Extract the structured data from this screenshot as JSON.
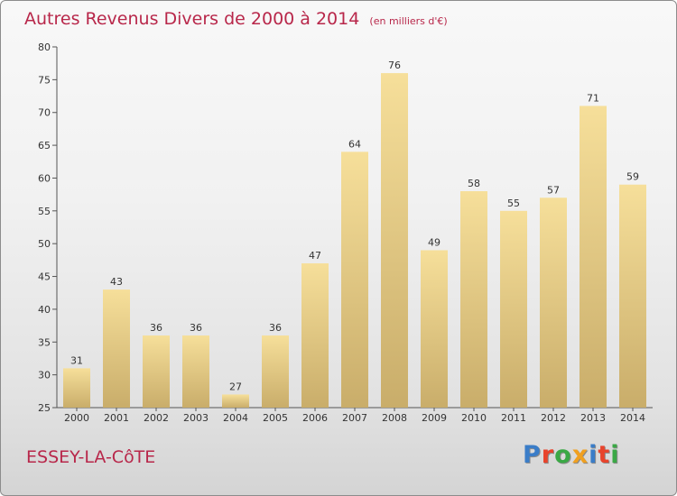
{
  "title": "Autres Revenus Divers de 2000 à 2014",
  "subtitle": "(en milliers d'€)",
  "commune": "ESSEY-LA-CôTE",
  "logo": {
    "text": "Proxiti",
    "colors": [
      "#3a7dc8",
      "#e8442c",
      "#3aa845",
      "#f0a020",
      "#3a7dc8",
      "#e8442c",
      "#3aa845"
    ]
  },
  "colors": {
    "title": "#b8274a",
    "bar_light": "#f6df9a",
    "bar_dark": "#c9ad6a"
  },
  "chart_data": {
    "type": "bar",
    "categories": [
      "2000",
      "2001",
      "2002",
      "2003",
      "2004",
      "2005",
      "2006",
      "2007",
      "2008",
      "2009",
      "2010",
      "2011",
      "2012",
      "2013",
      "2014"
    ],
    "values": [
      31,
      43,
      36,
      36,
      27,
      36,
      47,
      64,
      76,
      49,
      58,
      55,
      57,
      71,
      59
    ],
    "title": "Autres Revenus Divers de 2000 à 2014",
    "subtitle": "(en milliers d'€)",
    "xlabel": "",
    "ylabel": "",
    "ylim": [
      25,
      80
    ],
    "yticks": [
      25,
      30,
      35,
      40,
      45,
      50,
      55,
      60,
      65,
      70,
      75,
      80
    ],
    "grid": false,
    "legend": "none"
  }
}
